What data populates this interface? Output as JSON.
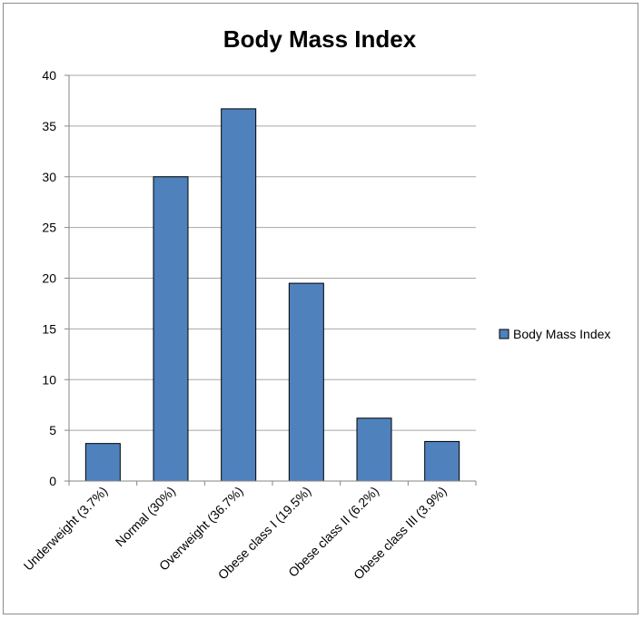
{
  "chart_data": {
    "type": "bar",
    "title": "Body Mass Index",
    "categories": [
      "Underweight (3.7%)",
      "Normal (30%)",
      "Overweight (36.7%)",
      "Obese class I (19.5%)",
      "Obese class II (6.2%)",
      "Obese class III (3.9%)"
    ],
    "series": [
      {
        "name": "Body Mass Index",
        "values": [
          3.7,
          30,
          36.7,
          19.5,
          6.2,
          3.9
        ]
      }
    ],
    "xlabel": "",
    "ylabel": "",
    "ylim": [
      0,
      40
    ],
    "yticks": [
      0,
      5,
      10,
      15,
      20,
      25,
      30,
      35,
      40
    ],
    "grid": true,
    "legend": "right",
    "colors": {
      "bar": "#4f81bd",
      "bar_stroke": "#000000",
      "grid": "#a6a6a6"
    }
  }
}
